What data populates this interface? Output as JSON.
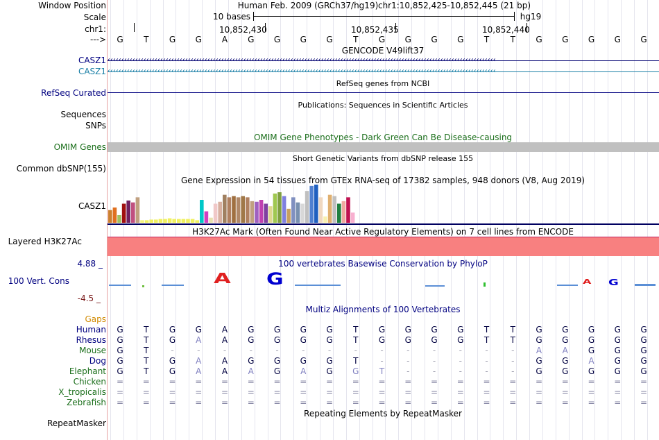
{
  "header": {
    "window_position_label": "Window Position",
    "scale_label": "Scale",
    "chrom_label": "chr1:",
    "strand_label": "--->",
    "assembly": "Human Feb. 2009 (GRCh37/hg19)",
    "position": "chr1:10,852,425-10,852,445 (21 bp)",
    "scale_text": "10 bases",
    "db": "hg19",
    "ticks": [
      "10,852,430",
      "10,852,435",
      "10,852,440"
    ]
  },
  "sequence": [
    "G",
    "T",
    "G",
    "G",
    "A",
    "G",
    "G",
    "G",
    "G",
    "T",
    "G",
    "G",
    "G",
    "G",
    "T",
    "T",
    "G",
    "G",
    "G",
    "G",
    "G"
  ],
  "tracks": {
    "gencode": {
      "title": "GENCODE V49lift37",
      "gene1": "CASZ1",
      "gene2": "CASZ1",
      "colors": {
        "gene1": "#0c0c78",
        "gene2": "#1a7fa6"
      }
    },
    "refseq": {
      "label": "RefSeq Curated",
      "title": "RefSeq genes from NCBI"
    },
    "publications": {
      "label1": "Sequences",
      "label2": "SNPs",
      "title": "Publications: Sequences in Scientific Articles"
    },
    "omim": {
      "title": "OMIM Gene Phenotypes - Dark Green Can Be Disease-causing",
      "label": "OMIM Genes",
      "bar_color": "#c0c0c0"
    },
    "dbsnp": {
      "title": "Short Genetic Variants from dbSNP release 155",
      "label": "Common dbSNP(155)"
    },
    "gtex": {
      "title": "Gene Expression in 54 tissues from GTEx RNA-seq of 17382 samples, 948 donors (V8, Aug 2019)",
      "label": "CASZ1",
      "values": [
        20,
        24,
        12,
        30,
        35,
        32,
        40,
        4,
        4,
        5,
        5,
        6,
        6,
        7,
        6,
        6,
        6,
        6,
        6,
        4,
        36,
        18,
        8,
        30,
        33,
        44,
        40,
        42,
        40,
        42,
        40,
        34,
        33,
        36,
        30,
        26,
        46,
        48,
        42,
        22,
        40,
        32,
        30,
        50,
        58,
        60,
        40,
        10,
        44,
        42,
        30,
        34,
        40,
        16
      ],
      "colors": [
        "#cc8030",
        "#e07020",
        "#a0c060",
        "#a01010",
        "#702060",
        "#c05080",
        "#c0a080",
        "#f4f480",
        "#f0f060",
        "#f0f060",
        "#f0f060",
        "#f0f060",
        "#f0f060",
        "#f0f060",
        "#f0f060",
        "#f0f060",
        "#f0f060",
        "#f0f060",
        "#f0f060",
        "#f0f060",
        "#00c8c8",
        "#d040c0",
        "#e8e0b0",
        "#f0c8c8",
        "#d8b0a0",
        "#a08060",
        "#b08060",
        "#a07040",
        "#b08868",
        "#a07848",
        "#b08060",
        "#c0a080",
        "#a060c0",
        "#c040b0",
        "#8040a0",
        "#e0d890",
        "#a0c850",
        "#80a040",
        "#8080e0",
        "#c8a060",
        "#8090c0",
        "#7890b0",
        "#d8d8d8",
        "#c0c0c0",
        "#5080d0",
        "#2060c0",
        "#f0d8c0",
        "#f8f0b0",
        "#e0b070",
        "#c0c0c0",
        "#208040",
        "#f0a8a0",
        "#c01050",
        "#f8b0d0"
      ]
    },
    "h3k27ac": {
      "title": "H3K27Ac Mark (Often Found Near Active Regulatory Elements) on 7 cell lines from ENCODE",
      "label": "Layered H3K27Ac",
      "fill_color": "#f88080"
    },
    "phylop": {
      "title": "100 vertebrates Basewise Conservation by PhyloP",
      "label": "100 Vert. Cons",
      "ymax": "4.88 _",
      "ymin": "-4.5 _",
      "logo_letters": [
        "A",
        "G"
      ]
    },
    "multiz": {
      "title": "Multiz Alignments of 100 Vertebrates",
      "gaps_label": "Gaps",
      "species": [
        {
          "name": "Human",
          "bases": [
            "G",
            "T",
            "G",
            "G",
            "A",
            "G",
            "G",
            "G",
            "G",
            "T",
            "G",
            "G",
            "G",
            "G",
            "T",
            "T",
            "G",
            "G",
            "G",
            "G",
            "G"
          ]
        },
        {
          "name": "Rhesus",
          "bases": [
            "G",
            "T",
            "G",
            "A",
            "A",
            "G",
            "G",
            "G",
            "G",
            "T",
            "G",
            "G",
            "G",
            "G",
            "T",
            "T",
            "G",
            "G",
            "G",
            "G",
            "G"
          ]
        },
        {
          "name": "Mouse",
          "bases": [
            "G",
            "T",
            "-",
            "-",
            "-",
            "-",
            "-",
            "-",
            "-",
            "-",
            "-",
            "-",
            "-",
            "-",
            "-",
            "-",
            "A",
            "A",
            "G",
            "G",
            "G"
          ]
        },
        {
          "name": "Dog",
          "bases": [
            "G",
            "T",
            "G",
            "A",
            "A",
            "G",
            "G",
            "G",
            "G",
            "T",
            "-",
            "-",
            "-",
            "-",
            "-",
            "-",
            "G",
            "G",
            "A",
            "G",
            "G"
          ]
        },
        {
          "name": "Elephant",
          "bases": [
            "G",
            "T",
            "G",
            "A",
            "A",
            "A",
            "G",
            "A",
            "G",
            "G",
            "T",
            "-",
            "-",
            "-",
            "-",
            "-",
            "G",
            "G",
            "G",
            "G",
            "G"
          ]
        },
        {
          "name": "Chicken",
          "bases": [
            "=",
            "=",
            "=",
            "=",
            "=",
            "=",
            "=",
            "=",
            "=",
            "=",
            "=",
            "=",
            "=",
            "=",
            "=",
            "=",
            "=",
            "=",
            "=",
            "=",
            "="
          ]
        },
        {
          "name": "X_tropicalis",
          "bases": [
            "=",
            "=",
            "=",
            "=",
            "=",
            "=",
            "=",
            "=",
            "=",
            "=",
            "=",
            "=",
            "=",
            "=",
            "=",
            "=",
            "=",
            "=",
            "=",
            "=",
            "="
          ]
        },
        {
          "name": "Zebrafish",
          "bases": [
            "=",
            "=",
            "=",
            "=",
            "=",
            "=",
            "=",
            "=",
            "=",
            "=",
            "=",
            "=",
            "=",
            "=",
            "=",
            "=",
            "=",
            "=",
            "=",
            "=",
            "="
          ]
        }
      ]
    },
    "repeatmasker": {
      "label": "RepeatMasker",
      "title": "Repeating Elements by RepeatMasker"
    }
  }
}
